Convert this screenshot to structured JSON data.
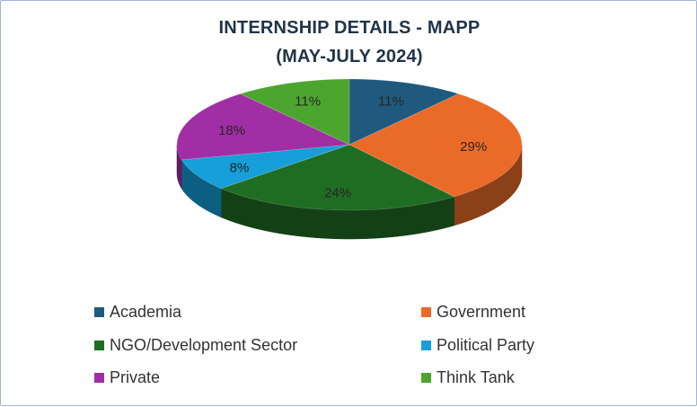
{
  "chart_data": {
    "type": "pie",
    "title_lines": [
      "INTERNSHIP DETAILS - MAPP",
      "(MAY-JULY 2024)"
    ],
    "categories": [
      "Academia",
      "Government",
      "NGO/Development Sector",
      "Political Party",
      "Private",
      "Think Tank"
    ],
    "values": [
      11,
      29,
      24,
      8,
      18,
      11
    ],
    "labels": [
      "11%",
      "29%",
      "24%",
      "8%",
      "18%",
      "11%"
    ],
    "colors": [
      "#1f5a7e",
      "#ea6b28",
      "#1f6d23",
      "#169fd8",
      "#a12ea4",
      "#4ca52f"
    ],
    "legend_placement": "bottom"
  }
}
